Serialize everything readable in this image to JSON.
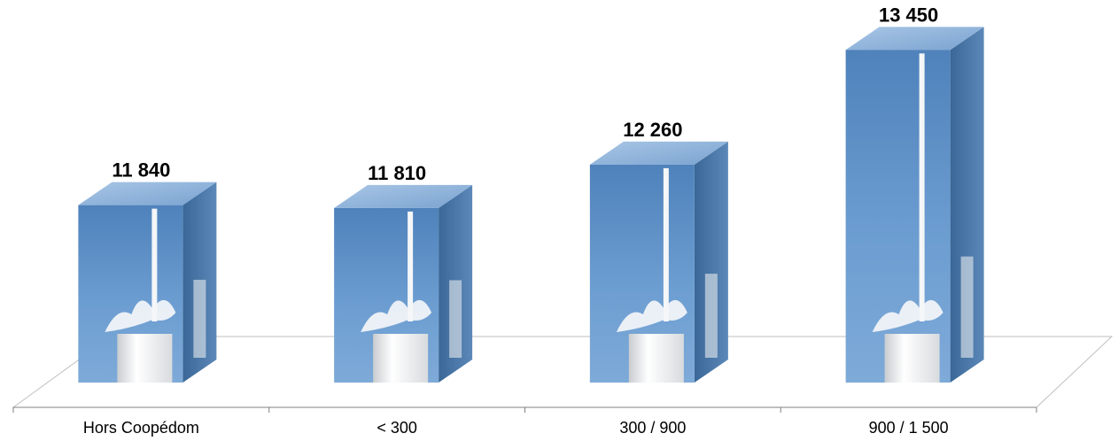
{
  "chart_data": {
    "type": "bar",
    "style": "3d-column",
    "categories": [
      "Hors Coopédom",
      "< 300",
      "300 / 900",
      "900 / 1 500"
    ],
    "values": [
      11840,
      11810,
      12260,
      13450
    ],
    "value_labels": [
      "11 840",
      "11 810",
      "12 260",
      "13 450"
    ],
    "title": "",
    "xlabel": "",
    "ylabel": "",
    "ylim": [
      10000,
      13600
    ],
    "grid": false,
    "legend": "none",
    "colors": {
      "bar_front": "#5d8fc6",
      "bar_side": "#3f6e9e",
      "bar_top": "#8fb4dc",
      "floor_line": "#bfbfbf",
      "axis_line": "#808080",
      "milk": "#f4f6f8"
    }
  }
}
